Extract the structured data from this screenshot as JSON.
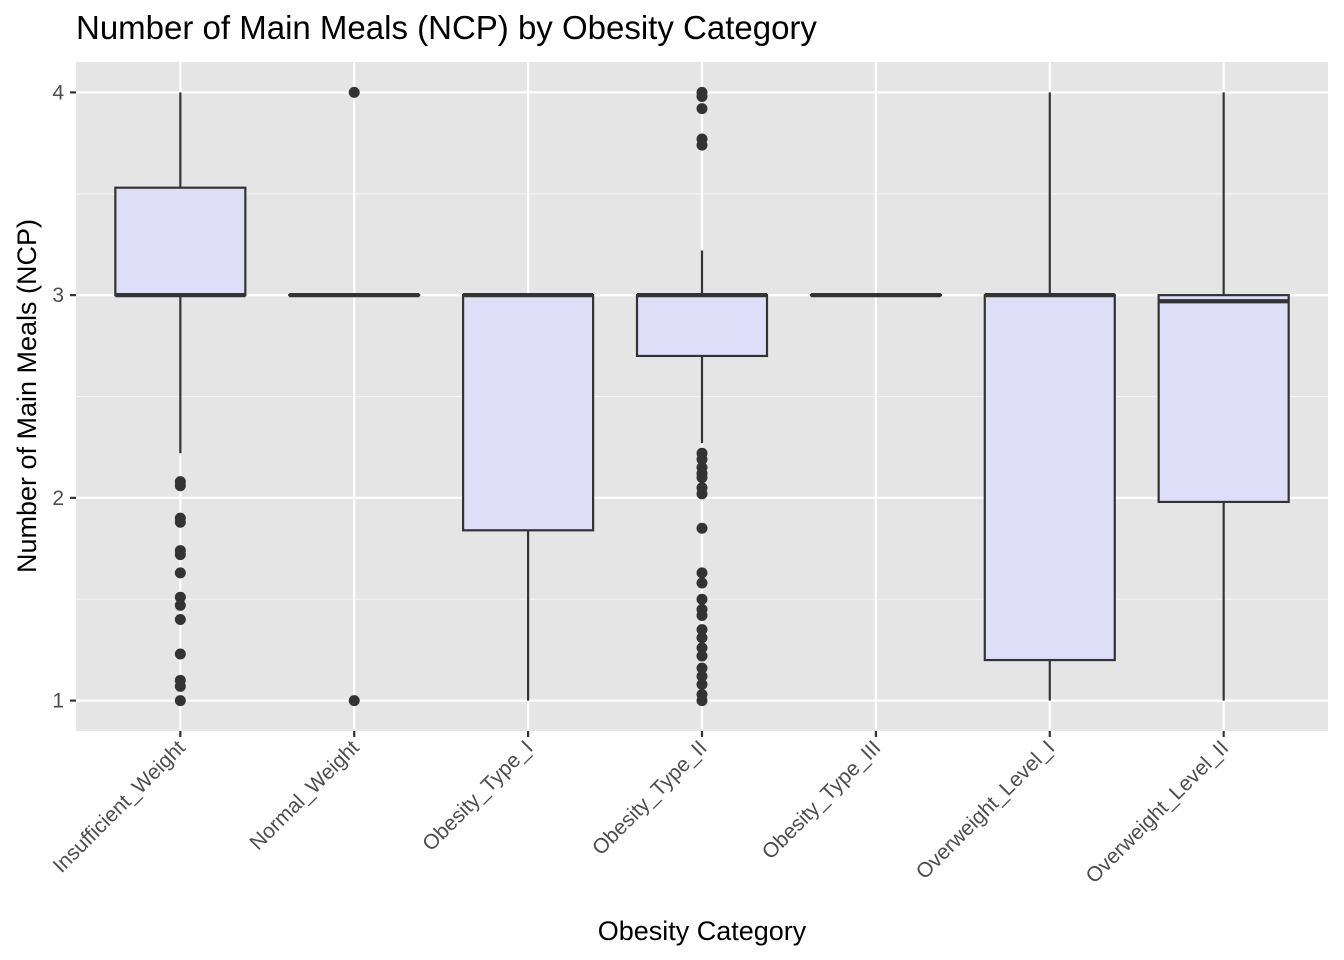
{
  "chart_data": {
    "type": "boxplot",
    "title": "Number of Main Meals (NCP) by Obesity Category",
    "xlabel": "Obesity Category",
    "ylabel": "Number of Main Meals (NCP)",
    "ylim": [
      0.85,
      4.15
    ],
    "yticks": [
      1,
      2,
      3,
      4
    ],
    "y_tick_labels": [
      "1",
      "2",
      "3",
      "4"
    ],
    "grid": true,
    "box_fill": "#dedef9",
    "panel_background": "#e5e5e5",
    "categories": [
      "Insufficient_Weight",
      "Normal_Weight",
      "Obesity_Type_I",
      "Obesity_Type_II",
      "Obesity_Type_III",
      "Overweight_Level_I",
      "Overweight_Level_II"
    ],
    "boxes": [
      {
        "category": "Insufficient_Weight",
        "whisker_low": 2.22,
        "q1": 3.0,
        "median": 3.0,
        "q3": 3.53,
        "whisker_high": 4.0,
        "outliers": [
          2.08,
          2.06,
          1.9,
          1.88,
          1.74,
          1.72,
          1.63,
          1.51,
          1.47,
          1.4,
          1.23,
          1.1,
          1.07,
          1.0
        ]
      },
      {
        "category": "Normal_Weight",
        "whisker_low": 3.0,
        "q1": 3.0,
        "median": 3.0,
        "q3": 3.0,
        "whisker_high": 3.0,
        "outliers": [
          4.0,
          1.0
        ]
      },
      {
        "category": "Obesity_Type_I",
        "whisker_low": 1.0,
        "q1": 1.84,
        "median": 3.0,
        "q3": 3.0,
        "whisker_high": 3.0,
        "outliers": []
      },
      {
        "category": "Obesity_Type_II",
        "whisker_low": 2.27,
        "q1": 2.7,
        "median": 3.0,
        "q3": 3.0,
        "whisker_high": 3.22,
        "outliers": [
          4.0,
          3.98,
          3.92,
          3.77,
          3.74,
          2.22,
          2.19,
          2.15,
          2.12,
          2.1,
          2.05,
          2.02,
          1.85,
          1.63,
          1.58,
          1.5,
          1.45,
          1.42,
          1.35,
          1.31,
          1.26,
          1.22,
          1.16,
          1.12,
          1.08,
          1.03,
          1.0
        ]
      },
      {
        "category": "Obesity_Type_III",
        "whisker_low": 3.0,
        "q1": 3.0,
        "median": 3.0,
        "q3": 3.0,
        "whisker_high": 3.0,
        "outliers": []
      },
      {
        "category": "Overweight_Level_I",
        "whisker_low": 1.0,
        "q1": 1.2,
        "median": 3.0,
        "q3": 3.0,
        "whisker_high": 4.0,
        "outliers": []
      },
      {
        "category": "Overweight_Level_II",
        "whisker_low": 1.0,
        "q1": 1.98,
        "median": 2.97,
        "q3": 3.0,
        "whisker_high": 4.0,
        "outliers": []
      }
    ]
  }
}
